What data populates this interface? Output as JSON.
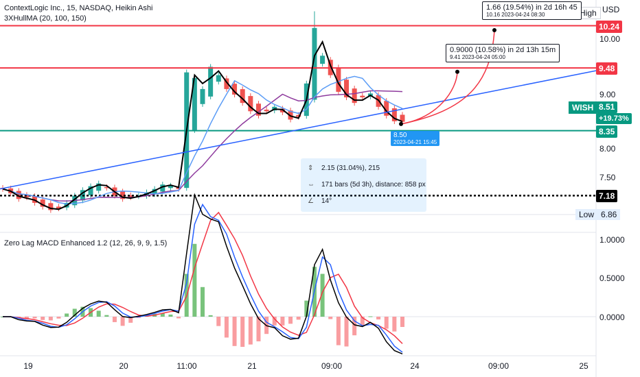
{
  "header": {
    "symbol_line": "ContextLogic Inc., 15, NASDAQ, Heikin Ashi",
    "indicator_line": "3XHullMA (20, 100, 150)",
    "macd_line": "Zero Lag MACD Enhanced 1.2 (12, 26, 9, 9, 1.5)"
  },
  "price_axis": {
    "currency": "USD",
    "ticks": [
      "10.00",
      "9.00",
      "8.00",
      "7.50"
    ]
  },
  "macd_axis": {
    "ticks": [
      "1.0000",
      "0.5000",
      "0.0000"
    ]
  },
  "time_axis": {
    "ticks": [
      "19",
      "20",
      "11:00",
      "21",
      "09:00",
      "24",
      "09:00",
      "25"
    ]
  },
  "price_tags": {
    "high_label": "High",
    "resistance_1": "10.24",
    "resistance_2": "9.48",
    "symbol": "WISH",
    "last": "8.51",
    "change": "+19.73%",
    "support": "8.35",
    "dotted": "7.18",
    "low_label": "Low",
    "low_value": "6.86"
  },
  "callouts": {
    "upper": {
      "line1": "1.66 (19.54%) in 2d 16h 45",
      "line2": "10.16     2023-04-24  08:30"
    },
    "lower": {
      "line1": "0.9000 (10.58%) in 2d 13h 15m",
      "line2": "9.41     2023-04-24  05:00"
    }
  },
  "anchor_point": {
    "price": "8.50",
    "datetime": "2023-04-21 15:45"
  },
  "measure_tool": {
    "range": "2.15 (31.04%), 215",
    "bars": "171 bars (5d 3h), distance: 858 px",
    "angle": "14°"
  },
  "colors": {
    "bull": "#26a69a",
    "bear": "#ef5350",
    "red_line": "#f23645",
    "green_line": "#089981",
    "trend_blue": "#2962ff",
    "hull_fast": "#000000",
    "hull_mid": "#5b9cf6",
    "hull_slow": "#8e3a9d",
    "macd_fast": "#000000",
    "macd_blue": "#2962ff",
    "macd_red": "#f23645",
    "measure_blue": "#2196f3"
  },
  "chart_data": {
    "type": "candlestick",
    "title": "ContextLogic Inc., 15, NASDAQ, Heikin Ashi",
    "price_range": [
      6.75,
      10.55
    ],
    "horizontal_levels": [
      10.24,
      9.48,
      8.35,
      7.18
    ],
    "price_series": {
      "name": "Heikin Ashi close (approx.)",
      "x_labels_order": [
        "19",
        "20",
        "11:00",
        "21",
        "09:00"
      ],
      "values": [
        7.3,
        7.22,
        7.12,
        7.15,
        7.05,
        6.98,
        6.92,
        6.95,
        7.05,
        7.18,
        7.28,
        7.35,
        7.4,
        7.32,
        7.18,
        7.12,
        7.15,
        7.18,
        7.24,
        7.3,
        7.38,
        7.36,
        7.3,
        9.4,
        9.3,
        9.1,
        9.5,
        9.35,
        9.1,
        9.0,
        8.85,
        8.7,
        8.62,
        8.7,
        8.78,
        8.68,
        8.55,
        8.6,
        9.2,
        10.2,
        9.7,
        9.35,
        9.05,
        8.95,
        8.85,
        8.95,
        9.02,
        8.78,
        8.62,
        8.52,
        8.51
      ]
    },
    "macd_range": [
      -0.4,
      1.05
    ],
    "macd_ticks": [
      1.0,
      0.5,
      0.0
    ]
  }
}
